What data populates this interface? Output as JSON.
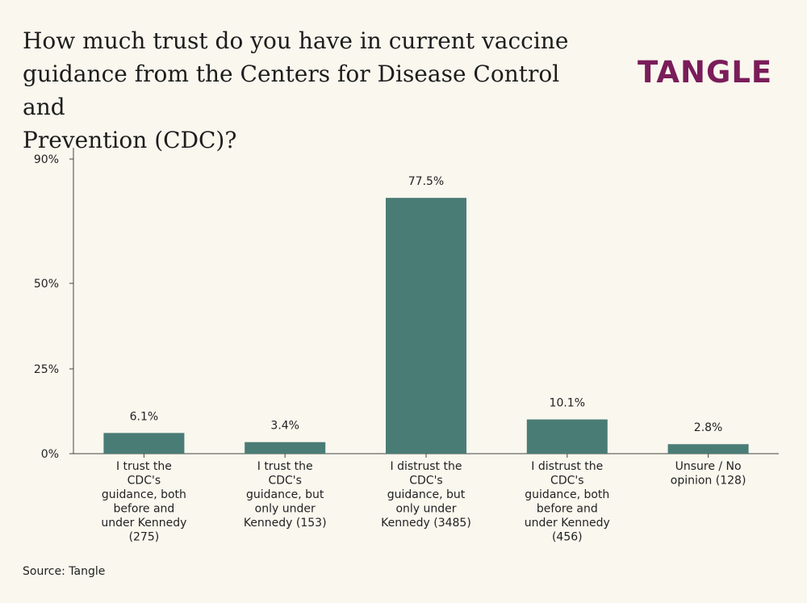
{
  "header": {
    "title": "How much trust do you have in current vaccine\nguidance from the Centers for Disease Control and\nPrevention (CDC)?",
    "logo": "TANGLE"
  },
  "footer": {
    "source": "Source: Tangle"
  },
  "colors": {
    "bar": "#4a7c76",
    "axis": "#444444",
    "logo": "#7a1d5a",
    "background": "#f9f7ee"
  },
  "chart_data": {
    "type": "bar",
    "title": "How much trust do you have in current vaccine guidance from the Centers for Disease Control and Prevention (CDC)?",
    "xlabel": "",
    "ylabel": "",
    "ylim": [
      0,
      90
    ],
    "yticks": [
      0,
      25,
      50,
      90
    ],
    "ytick_labels": [
      "0%",
      "25%",
      "50%",
      "90%"
    ],
    "grid": false,
    "categories": [
      [
        "I trust the",
        "CDC's",
        "guidance, both",
        "before and",
        "under Kennedy",
        "(275)"
      ],
      [
        "I trust the",
        "CDC's",
        "guidance, but",
        "only under",
        "Kennedy (153)"
      ],
      [
        "I distrust the",
        "CDC's",
        "guidance, but",
        "only under",
        "Kennedy (3485)"
      ],
      [
        "I distrust the",
        "CDC's",
        "guidance, both",
        "before and",
        "under Kennedy",
        "(456)"
      ],
      [
        "Unsure / No",
        "opinion (128)"
      ]
    ],
    "values": [
      6.1,
      3.4,
      77.5,
      10.1,
      2.8
    ],
    "value_labels": [
      "6.1%",
      "3.4%",
      "77.5%",
      "10.1%",
      "2.8%"
    ]
  }
}
